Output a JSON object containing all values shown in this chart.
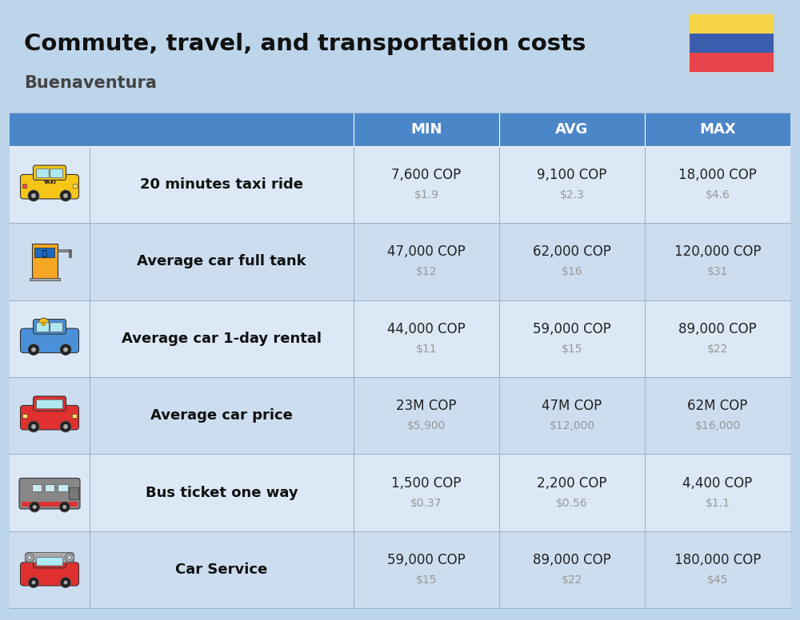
{
  "title": "Commute, travel, and transportation costs",
  "subtitle": "Buenaventura",
  "bg_color": "#bdd5ea",
  "header_bg": "#4a86c8",
  "header_text_color": "#ffffff",
  "row_bg_odd": "#dce8f5",
  "row_bg_even": "#cdddf0",
  "col_headers": [
    "MIN",
    "AVG",
    "MAX"
  ],
  "rows": [
    {
      "label": "20 minutes taxi ride",
      "min_cop": "7,600 COP",
      "min_usd": "$1.9",
      "avg_cop": "9,100 COP",
      "avg_usd": "$2.3",
      "max_cop": "18,000 COP",
      "max_usd": "$4.6"
    },
    {
      "label": "Average car full tank",
      "min_cop": "47,000 COP",
      "min_usd": "$12",
      "avg_cop": "62,000 COP",
      "avg_usd": "$16",
      "max_cop": "120,000 COP",
      "max_usd": "$31"
    },
    {
      "label": "Average car 1-day rental",
      "min_cop": "44,000 COP",
      "min_usd": "$11",
      "avg_cop": "59,000 COP",
      "avg_usd": "$15",
      "max_cop": "89,000 COP",
      "max_usd": "$22"
    },
    {
      "label": "Average car price",
      "min_cop": "23M COP",
      "min_usd": "$5,900",
      "avg_cop": "47M COP",
      "avg_usd": "$12,000",
      "max_cop": "62M COP",
      "max_usd": "$16,000"
    },
    {
      "label": "Bus ticket one way",
      "min_cop": "1,500 COP",
      "min_usd": "$0.37",
      "avg_cop": "2,200 COP",
      "avg_usd": "$0.56",
      "max_cop": "4,400 COP",
      "max_usd": "$1.1"
    },
    {
      "label": "Car Service",
      "min_cop": "59,000 COP",
      "min_usd": "$15",
      "avg_cop": "89,000 COP",
      "avg_usd": "$22",
      "max_cop": "180,000 COP",
      "max_usd": "$45"
    }
  ],
  "title_fontsize": 21,
  "subtitle_fontsize": 15,
  "header_fontsize": 13,
  "label_fontsize": 13,
  "value_fontsize": 12,
  "usd_fontsize": 10,
  "cop_color": "#222222",
  "usd_color": "#999999",
  "label_color": "#111111",
  "flag_yellow": "#F5D547",
  "flag_blue": "#3A5DAE",
  "flag_red": "#E8424A",
  "sep_color": "#9ab5d0",
  "line_color": "#9ab5d0"
}
